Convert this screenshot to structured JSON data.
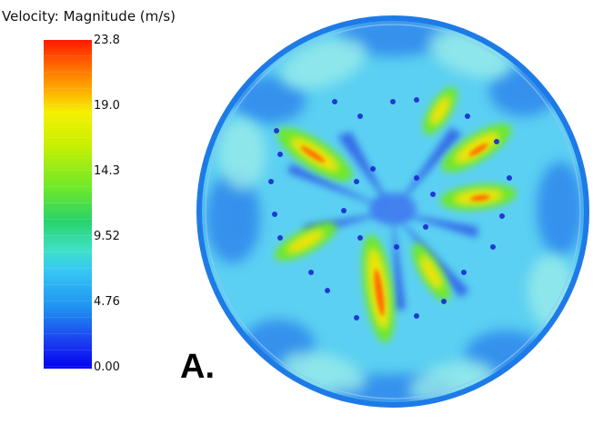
{
  "legend": {
    "title": "Velocity: Magnitude (m/s)",
    "ticks": [
      "23.8",
      "19.0",
      "14.3",
      "9.52",
      "4.76",
      "0.00"
    ],
    "colors": [
      "#ff1a00",
      "#ffb400",
      "#f5f000",
      "#6ee82a",
      "#37c8f5",
      "#0000f0"
    ]
  },
  "panel": {
    "label": "A."
  }
}
